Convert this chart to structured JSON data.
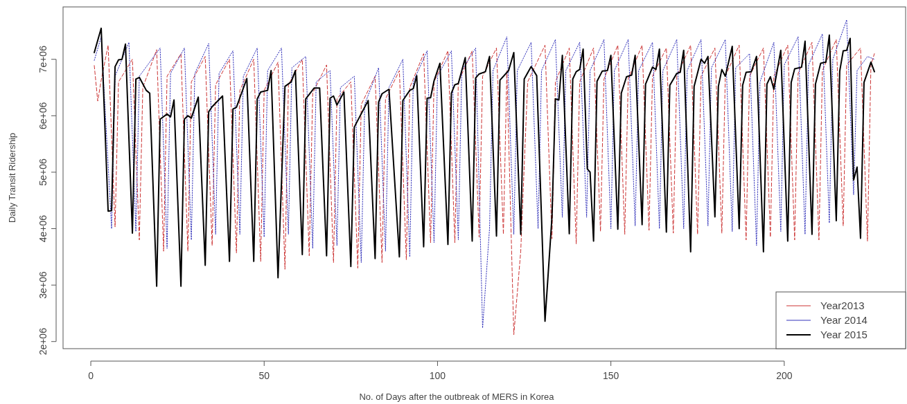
{
  "chart_data": {
    "type": "line",
    "xlabel": "No. of Days after the outbreak of MERS in Korea",
    "ylabel": "Daily Transit Ridership",
    "xlim": [
      -8,
      235
    ],
    "xticks": [
      0,
      50,
      100,
      150,
      200
    ],
    "ylim": [
      1874000.0,
      7928000.0
    ],
    "yticks": [
      {
        "value": 2000000.0,
        "label": "2e+06"
      },
      {
        "value": 3000000.0,
        "label": "3e+06"
      },
      {
        "value": 4000000.0,
        "label": "4e+06"
      },
      {
        "value": 5000000.0,
        "label": "5e+06"
      },
      {
        "value": 6000000.0,
        "label": "6e+06"
      },
      {
        "value": 7000000.0,
        "label": "7e+06"
      }
    ],
    "legend": "bottom right",
    "grid": false,
    "marker": "none",
    "series": [
      {
        "name": "Year2013",
        "color": "#cc3333",
        "line_style": "dashed",
        "x": [
          1,
          2,
          3,
          5,
          7,
          8,
          12,
          14,
          15,
          19,
          21,
          22,
          26,
          28,
          29,
          33,
          35,
          36,
          40,
          42,
          43,
          47,
          49,
          50,
          54,
          56,
          57,
          61,
          63,
          64,
          68,
          70,
          71,
          75,
          77,
          78,
          82,
          84,
          85,
          89,
          91,
          92,
          96,
          98,
          99,
          103,
          105,
          106,
          110,
          112,
          113,
          117,
          119,
          120,
          122,
          124,
          126,
          131,
          133,
          134,
          138,
          140,
          141,
          145,
          147,
          148,
          152,
          154,
          155,
          159,
          161,
          162,
          166,
          168,
          169,
          173,
          175,
          176,
          180,
          182,
          183,
          187,
          189,
          190,
          194,
          196,
          197,
          201,
          203,
          204,
          208,
          210,
          211,
          215,
          217,
          218,
          222,
          224,
          225,
          226
        ],
        "values": [
          6890000.0,
          6260000.0,
          6630000.0,
          7250000.0,
          4030000.0,
          6600000.0,
          7000000.0,
          3800000.0,
          6500000.0,
          7170000.0,
          3600000.0,
          6700000.0,
          7100000.0,
          3600000.0,
          6600000.0,
          7050000.0,
          3700000.0,
          6550000.0,
          7000000.0,
          3570000.0,
          6450000.0,
          7000000.0,
          3420000.0,
          6450000.0,
          6950000.0,
          3280000.0,
          6550000.0,
          7000000.0,
          3520000.0,
          6400000.0,
          6900000.0,
          3400000.0,
          6300000.0,
          6600000.0,
          3300000.0,
          6200000.0,
          6700000.0,
          3400000.0,
          6300000.0,
          6800000.0,
          3450000.0,
          6500000.0,
          7100000.0,
          3750000.0,
          6600000.0,
          7150000.0,
          3750000.0,
          6600000.0,
          7150000.0,
          3850000.0,
          6700000.0,
          7200000.0,
          3900000.0,
          6800000.0,
          2120000.0,
          3600000.0,
          6600000.0,
          7250000.0,
          3820000.0,
          6600000.0,
          7200000.0,
          3730000.0,
          6600000.0,
          7200000.0,
          3950000.0,
          6650000.0,
          7250000.0,
          3900000.0,
          6650000.0,
          7250000.0,
          3970000.0,
          6700000.0,
          7200000.0,
          3920000.0,
          6700000.0,
          7250000.0,
          3900000.0,
          6700000.0,
          7200000.0,
          3920000.0,
          6700000.0,
          7250000.0,
          3800000.0,
          6700000.0,
          7200000.0,
          3850000.0,
          6700000.0,
          7250000.0,
          3800000.0,
          6750000.0,
          7300000.0,
          3800000.0,
          6800000.0,
          7350000.0,
          4050000.0,
          6900000.0,
          7200000.0,
          3780000.0,
          6900000.0,
          7100000.0
        ]
      },
      {
        "name": "Year 2014",
        "color": "#3333bb",
        "line_style": "dotted",
        "x": [
          1,
          3,
          6,
          7,
          11,
          13,
          14,
          20,
          22,
          23,
          27,
          29,
          30,
          34,
          36,
          37,
          41,
          43,
          44,
          48,
          50,
          51,
          55,
          57,
          58,
          62,
          64,
          65,
          69,
          71,
          72,
          76,
          78,
          79,
          83,
          85,
          86,
          90,
          92,
          93,
          97,
          99,
          100,
          104,
          106,
          107,
          111,
          113,
          115,
          116,
          120,
          122,
          123,
          127,
          129,
          130,
          134,
          136,
          137,
          141,
          143,
          144,
          148,
          150,
          151,
          155,
          157,
          158,
          162,
          164,
          165,
          169,
          171,
          172,
          176,
          178,
          179,
          183,
          185,
          186,
          190,
          192,
          193,
          197,
          199,
          200,
          204,
          206,
          207,
          211,
          213,
          214,
          218,
          220,
          221,
          224,
          226
        ],
        "values": [
          6980000.0,
          7400000.0,
          4000000.0,
          6700000.0,
          7300000.0,
          3950000.0,
          6700000.0,
          7200000.0,
          3650000.0,
          6750000.0,
          7200000.0,
          3800000.0,
          6750000.0,
          7280000.0,
          3900000.0,
          6750000.0,
          7150000.0,
          3900000.0,
          6700000.0,
          7200000.0,
          3850000.0,
          6800000.0,
          7200000.0,
          3900000.0,
          6850000.0,
          7050000.0,
          3650000.0,
          6600000.0,
          6800000.0,
          3700000.0,
          6500000.0,
          6700000.0,
          3400000.0,
          6200000.0,
          6850000.0,
          3600000.0,
          6500000.0,
          7000000.0,
          3500000.0,
          6600000.0,
          7150000.0,
          3750000.0,
          6700000.0,
          7150000.0,
          3800000.0,
          6800000.0,
          7200000.0,
          2240000.0,
          4000000.0,
          6800000.0,
          7400000.0,
          3900000.0,
          6800000.0,
          7300000.0,
          4000000.0,
          6800000.0,
          7350000.0,
          4200000.0,
          6800000.0,
          7300000.0,
          4200000.0,
          6800000.0,
          7350000.0,
          4000000.0,
          6800000.0,
          7350000.0,
          4050000.0,
          6800000.0,
          7300000.0,
          4000000.0,
          6800000.0,
          7350000.0,
          4000000.0,
          6800000.0,
          7350000.0,
          4050000.0,
          6850000.0,
          7350000.0,
          3950000.0,
          6850000.0,
          7100000.0,
          3700000.0,
          6600000.0,
          7300000.0,
          3950000.0,
          6900000.0,
          7400000.0,
          3900000.0,
          6900000.0,
          7450000.0,
          4100000.0,
          7000000.0,
          7700000.0,
          4600000.0,
          6800000.0,
          7050000.0,
          7000000.0
        ]
      },
      {
        "name": "Year 2015",
        "color": "#000000",
        "line_style": "solid",
        "x": [
          1,
          3,
          5,
          6,
          7,
          8,
          9,
          10,
          12,
          13,
          14,
          16,
          17,
          19,
          20,
          22,
          23,
          24,
          26,
          27,
          28,
          29,
          31,
          33,
          34,
          35,
          38,
          40,
          41,
          42,
          45,
          47,
          48,
          49,
          51,
          52,
          54,
          56,
          57.8,
          59,
          61,
          62,
          64.4,
          66,
          68,
          69,
          70,
          71,
          73,
          75,
          76,
          80,
          82,
          83,
          84,
          86,
          89,
          90,
          92,
          93,
          94,
          96,
          97,
          98,
          99,
          100.7,
          103,
          104,
          105,
          106,
          108,
          110,
          111,
          112,
          113.8,
          115,
          117,
          118,
          120.5,
          122,
          124,
          125,
          127,
          128.6,
          131,
          133,
          134,
          135,
          136,
          138,
          139,
          140,
          141,
          142,
          143.2,
          144,
          145,
          146,
          147.5,
          149,
          150,
          152,
          153,
          154.5,
          156,
          157,
          159,
          160,
          162,
          163,
          164,
          166,
          167,
          169,
          170,
          171,
          173,
          174,
          176,
          177,
          178,
          180,
          181,
          182,
          183,
          185,
          187,
          188,
          189,
          190.5,
          192,
          194,
          195,
          196,
          197,
          199,
          201,
          202,
          203,
          205,
          206,
          208,
          209,
          210.5,
          212,
          213,
          215,
          216,
          217,
          218,
          219,
          220,
          221,
          222,
          223,
          225,
          226
        ],
        "values": [
          7120000.0,
          7550000.0,
          4310000.0,
          4320000.0,
          6870000.0,
          6990000.0,
          7000000.0,
          7270000.0,
          3920000.0,
          6650000.0,
          6680000.0,
          6450000.0,
          6400000.0,
          2980000.0,
          5940000.0,
          6030000.0,
          5980000.0,
          6280000.0,
          2980000.0,
          5940000.0,
          6000000.0,
          5960000.0,
          6330000.0,
          3350000.0,
          6070000.0,
          6160000.0,
          6350000.0,
          3420000.0,
          6120000.0,
          6150000.0,
          6660000.0,
          3420000.0,
          6300000.0,
          6420000.0,
          6450000.0,
          6800000.0,
          3130000.0,
          6520000.0,
          6600000.0,
          6800000.0,
          3540000.0,
          6300000.0,
          6490000.0,
          6490000.0,
          3520000.0,
          6310000.0,
          6350000.0,
          6190000.0,
          6420000.0,
          3330000.0,
          5800000.0,
          6270000.0,
          3470000.0,
          6240000.0,
          6390000.0,
          6470000.0,
          3500000.0,
          6270000.0,
          6450000.0,
          6480000.0,
          6710000.0,
          3680000.0,
          6310000.0,
          6320000.0,
          6620000.0,
          6930000.0,
          3720000.0,
          6400000.0,
          6550000.0,
          6570000.0,
          7030000.0,
          3780000.0,
          6670000.0,
          6740000.0,
          6780000.0,
          7050000.0,
          3870000.0,
          6630000.0,
          6800000.0,
          7120000.0,
          3900000.0,
          6650000.0,
          6870000.0,
          6710000.0,
          2360000.0,
          4200000.0,
          6300000.0,
          6280000.0,
          7070000.0,
          3910000.0,
          6650000.0,
          6780000.0,
          6820000.0,
          7180000.0,
          5060000.0,
          5000000.0,
          3780000.0,
          6610000.0,
          6790000.0,
          6800000.0,
          7070000.0,
          3990000.0,
          6400000.0,
          6690000.0,
          6720000.0,
          7070000.0,
          4070000.0,
          6560000.0,
          6860000.0,
          6820000.0,
          7180000.0,
          3940000.0,
          6540000.0,
          6750000.0,
          6770000.0,
          7160000.0,
          3590000.0,
          6520000.0,
          7000000.0,
          6930000.0,
          7050000.0,
          4210000.0,
          6520000.0,
          6820000.0,
          6700000.0,
          7230000.0,
          4000000.0,
          6540000.0,
          6770000.0,
          6780000.0,
          7050000.0,
          3590000.0,
          6560000.0,
          6690000.0,
          6470000.0,
          7160000.0,
          3780000.0,
          6590000.0,
          6830000.0,
          6860000.0,
          7320000.0,
          3900000.0,
          6560000.0,
          6930000.0,
          6950000.0,
          7430000.0,
          4140000.0,
          6790000.0,
          7150000.0,
          7160000.0,
          7370000.0,
          4860000.0,
          5090000.0,
          3830000.0,
          6590000.0,
          6950000.0,
          6780000.0
        ]
      }
    ]
  }
}
